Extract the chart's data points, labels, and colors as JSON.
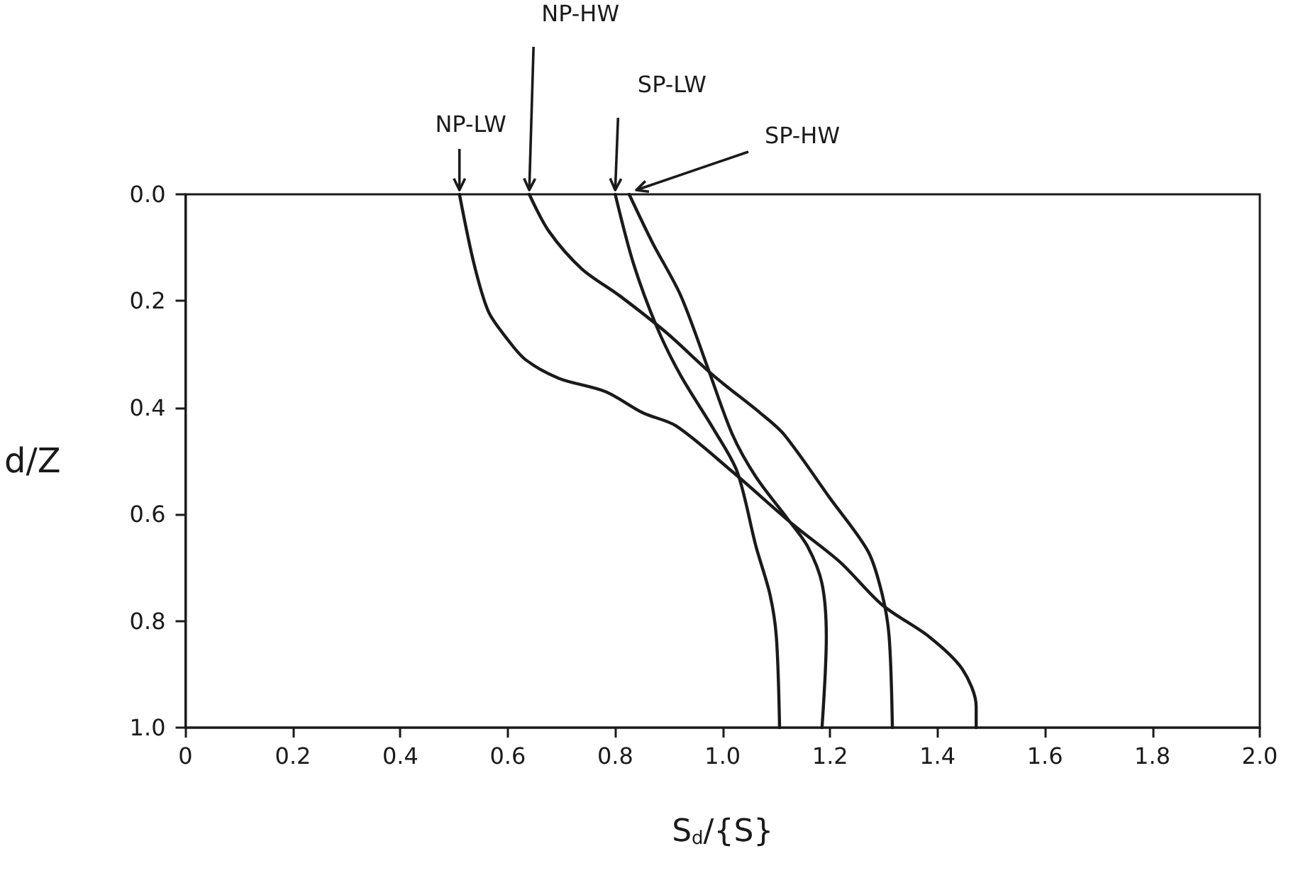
{
  "chart_data": {
    "type": "line",
    "xlabel": "S$_{d}$/{S}",
    "ylabel": "d/Z",
    "xlim": [
      0,
      2
    ],
    "xticks": [
      0,
      0.2,
      0.4,
      0.6,
      0.8,
      {
        "value": 1,
        "label": "1.0"
      },
      1.2,
      1.4,
      1.6,
      1.8,
      {
        "value": 2,
        "label": "2.0"
      }
    ],
    "ylim": [
      1,
      0
    ],
    "yticks": [
      {
        "value": 0,
        "label": "0.0"
      },
      0.2,
      0.4,
      0.6,
      0.8,
      {
        "value": 1,
        "label": "1.0"
      }
    ],
    "grid": false,
    "legend": false,
    "marker": "none",
    "line_style": "solid",
    "series": [
      {
        "name": "NP-LW",
        "color": "#1a1a1a",
        "x": [
          0.51,
          0.537,
          0.564,
          0.598,
          0.633,
          0.695,
          0.782,
          0.852,
          0.913,
          1.018,
          1.132,
          1.219,
          1.297,
          1.385,
          1.446,
          1.472,
          1.472
        ],
        "values": [
          0,
          0.13,
          0.22,
          0.27,
          0.31,
          0.345,
          0.37,
          0.41,
          0.434,
          0.52,
          0.62,
          0.69,
          0.77,
          0.83,
          0.89,
          0.96,
          1
        ]
      },
      {
        "name": "NP-HW",
        "color": "#1a1a1a",
        "x": [
          0.64,
          0.677,
          0.738,
          0.808,
          0.896,
          0.983,
          1.07,
          1.114,
          1.2,
          1.271,
          1.297,
          1.31,
          1.316
        ],
        "values": [
          0,
          0.07,
          0.14,
          0.19,
          0.26,
          0.34,
          0.41,
          0.45,
          0.57,
          0.67,
          0.75,
          0.83,
          1
        ]
      },
      {
        "name": "SP-LW",
        "color": "#1a1a1a",
        "x": [
          0.8,
          0.834,
          0.878,
          0.922,
          0.983,
          1.027,
          1.062,
          1.088,
          1.1,
          1.106
        ],
        "values": [
          0,
          0.13,
          0.25,
          0.34,
          0.44,
          0.52,
          0.66,
          0.75,
          0.83,
          1
        ]
      },
      {
        "name": "SP-HW",
        "color": "#1a1a1a",
        "x": [
          0.826,
          0.869,
          0.922,
          0.974,
          1.018,
          1.062,
          1.122,
          1.158,
          1.185,
          1.193,
          1.185
        ],
        "values": [
          0,
          0.09,
          0.19,
          0.33,
          0.45,
          0.53,
          0.61,
          0.66,
          0.73,
          0.83,
          1
        ]
      }
    ]
  }
}
